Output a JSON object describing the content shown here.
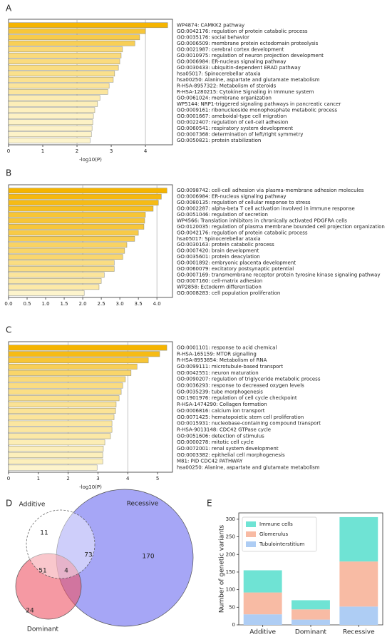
{
  "chart_data": [
    {
      "type": "hbar",
      "panel": "A",
      "xlabel": "-log10(P)",
      "xlim": [
        0,
        4.79
      ],
      "xticks": [
        0,
        1,
        2,
        3,
        4
      ],
      "grid_at": [
        2,
        4
      ],
      "color_range": [
        "#fdf4cc",
        "#f5b400"
      ],
      "categories": [
        "WP4874: CAMKK2 pathway",
        "GO:0042176: regulation of protein catabolic process",
        "GO:0035176: social behavior",
        "GO:0006509: membrane protein ectodomain proteolysis",
        "GO:0021987: cerebral cortex development",
        "GO:0010975: regulation of neuron projection development",
        "GO:0006984: ER-nucleus signaling pathway",
        "GO:0030433: ubiquitin-dependent ERAD pathway",
        "hsa05017: Spinocerebellar ataxia",
        "hsa00250: Alanine, aspartate and glutamate metabolism",
        "R-HSA-8957322: Metabolism of steroids",
        "R-HSA-1280215: Cytokine Signaling in Immune system",
        "GO:0061024: membrane organization",
        "WP5144: NRP1-triggered signaling pathways in pancreatic cancer",
        "GO:0009161: ribonucleoside monophosphate metabolic process",
        "GO:0001667: ameboidal-type cell migration",
        "GO:0022407: regulation of cell-cell adhesion",
        "GO:0060541: respiratory system development",
        "GO:0007368: determination of left/right symmetry",
        "GO:0050821: protein stabilization"
      ],
      "values": [
        4.65,
        4.0,
        3.83,
        3.69,
        3.33,
        3.29,
        3.25,
        3.21,
        3.1,
        3.06,
        2.94,
        2.9,
        2.67,
        2.6,
        2.52,
        2.48,
        2.46,
        2.44,
        2.42,
        2.38
      ]
    },
    {
      "type": "hbar",
      "panel": "B",
      "xlim": [
        0,
        4.42
      ],
      "xticks": [
        {
          "value": 0,
          "label": "0.0"
        },
        {
          "value": 0.5,
          "label": "0.5"
        },
        {
          "value": 1,
          "label": "1.0"
        },
        {
          "value": 1.5,
          "label": "1.5"
        },
        {
          "value": 2,
          "label": "2.0"
        },
        {
          "value": 2.5,
          "label": "2.5"
        },
        {
          "value": 3,
          "label": "3.0"
        },
        {
          "value": 3.5,
          "label": "3.5"
        },
        {
          "value": 4,
          "label": "4.0"
        }
      ],
      "grid_at": [
        2,
        4
      ],
      "color_range": [
        "#fdf4cc",
        "#f5b400"
      ],
      "categories": [
        "GO:0098742: cell-cell adhesion via plasma-membrane adhesion molecules",
        "GO:0006984: ER-nucleus signaling pathway",
        "GO:0080135: regulation of cellular response to stress",
        "GO:0002287: alpha-beta T cell activation involved in immune response",
        "GO:0051046: regulation of secretion",
        "WP4566: Translation inhibitors in chronically activated PDGFRA cells",
        "GO:0120035: regulation of plasma membrane bounded cell projection organization",
        "GO:0042176: regulation of protein catabolic process",
        "hsa05017: Spinocerebellar ataxia",
        "GO:0030163: protein catabolic process",
        "GO:0007420: brain development",
        "GO:0035601: protein deacylation",
        "GO:0001892: embryonic placenta development",
        "GO:0060079: excitatory postsynaptic potential",
        "GO:0007169: transmembrane receptor protein tyrosine kinase signaling pathway",
        "GO:0007160: cell-matrix adhesion",
        "WP2858: Ectoderm differentiation",
        "GO:0008283: cell population proliferation"
      ],
      "values": [
        4.27,
        4.12,
        4.04,
        3.9,
        3.69,
        3.67,
        3.65,
        3.5,
        3.4,
        3.19,
        3.13,
        3.08,
        2.85,
        2.85,
        2.58,
        2.5,
        2.44,
        2.04
      ]
    },
    {
      "type": "hbar",
      "panel": "C",
      "xlabel": "-log10(P)",
      "xlim": [
        0,
        5.5
      ],
      "xticks": [
        0,
        1,
        2,
        3,
        4,
        5
      ],
      "grid_at": [
        2,
        4
      ],
      "color_range": [
        "#fdf4cc",
        "#f5b400"
      ],
      "categories": [
        "GO:0001101: response to acid chemical",
        "R-HSA-165159: MTOR signalling",
        "R-HSA-8953854: Metabolism of RNA",
        "GO:0099111: microtubule-based transport",
        "GO:0042551: neuron maturation",
        "GO:0090207: regulation of triglyceride metabolic process",
        "GO:0036293: response to decreased oxygen levels",
        "GO:0035239: tube morphogenesis",
        "GO:1901976: regulation of cell cycle checkpoint",
        "R-HSA-1474290: Collagen formation",
        "GO:0006816: calcium ion transport",
        "GO:0071425: hematopoietic stem cell proliferation",
        "GO:0015931: nucleobase-containing compound transport",
        "R-HSA-9013148: CDC42 GTPase cycle",
        "GO:0051606: detection of stimulus",
        "GO:0000278: mitotic cell cycle",
        "GO:0072001: renal system development",
        "GO:0003382: epithelial cell morphogenesis",
        "M81: PID CDC42 PATHWAY",
        "hsa00250: Alanine, aspartate and glutamate metabolism"
      ],
      "values": [
        5.31,
        5.07,
        4.69,
        4.31,
        4.11,
        3.92,
        3.83,
        3.78,
        3.71,
        3.61,
        3.59,
        3.54,
        3.47,
        3.47,
        3.42,
        3.23,
        3.18,
        3.16,
        3.16,
        2.97
      ]
    },
    {
      "type": "venn",
      "panel": "D",
      "sets": [
        "Additive",
        "Dominant",
        "Recessive"
      ],
      "colors": [
        "#ffffff",
        "#ee5566",
        "#6b6bf0"
      ],
      "values": [
        11,
        24,
        170,
        51,
        73,
        4
      ]
    },
    {
      "type": "stacked_bar",
      "panel": "E",
      "ylabel": "Number of genetic variants",
      "categories": [
        "Additive",
        "Dominant",
        "Recessive"
      ],
      "ylim": [
        0,
        318
      ],
      "yticks": [
        0,
        50,
        100,
        150,
        200,
        250,
        300
      ],
      "series": [
        {
          "name": "Tubulointerstitium",
          "color": "#aecdf4",
          "values": [
            30,
            15,
            52
          ]
        },
        {
          "name": "Glomerulus",
          "color": "#f8bba4",
          "values": [
            62,
            29,
            128
          ]
        },
        {
          "name": "Immune cells",
          "color": "#6fe3d4",
          "values": [
            63,
            26,
            126
          ]
        }
      ]
    }
  ]
}
